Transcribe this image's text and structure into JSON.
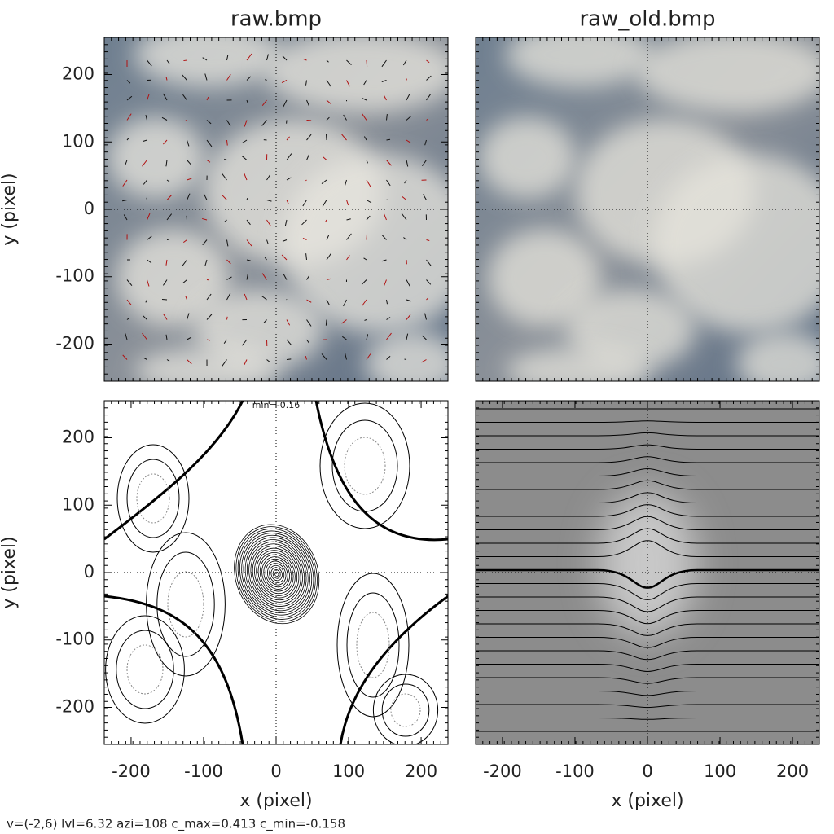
{
  "chart_data": [
    {
      "type": "image",
      "title": "raw.bmp",
      "ylabel": "y (pixel)",
      "xlim": [
        -237,
        237
      ],
      "ylim": [
        -255,
        255
      ],
      "yticks": [
        -200,
        -100,
        0,
        100,
        200
      ]
    },
    {
      "type": "image",
      "title": "raw_old.bmp",
      "xlim": [
        -237,
        237
      ],
      "ylim": [
        -255,
        255
      ]
    },
    {
      "type": "contour",
      "annotation": "min=-0.16",
      "xlabel": "x (pixel)",
      "ylabel": "y (pixel)",
      "xlim": [
        -237,
        237
      ],
      "ylim": [
        -255,
        255
      ],
      "xticks": [
        -200,
        -100,
        0,
        100,
        200
      ],
      "yticks": [
        -200,
        -100,
        0,
        100,
        200
      ]
    },
    {
      "type": "contour",
      "xlabel": "x (pixel)",
      "xlim": [
        -237,
        237
      ],
      "ylim": [
        -255,
        255
      ],
      "xticks": [
        -200,
        -100,
        0,
        100,
        200
      ]
    }
  ],
  "footer": "v=(-2,6) lvl=6.32 azi=108 c_max=0.413 c_min=-0.158"
}
